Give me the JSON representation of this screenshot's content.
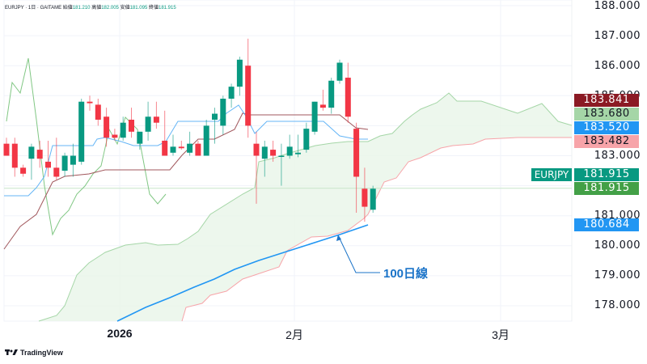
{
  "legend": {
    "symbol": "EURJPY · 1日 · GAITAME",
    "open_label": "始値",
    "open": "181.210",
    "high_label": "高値",
    "high": "182.005",
    "low_label": "安値",
    "low": "181.095",
    "close_label": "終値",
    "close": "181.915"
  },
  "axis": {
    "price_labels": [
      "188.000",
      "187.000",
      "186.000",
      "185.000",
      "183.000",
      "181.000",
      "180.000",
      "179.000",
      "178.000"
    ],
    "time_labels": [
      "2026",
      "2月",
      "3月"
    ]
  },
  "tags": {
    "t1": {
      "value": "183.841",
      "bg": "#8b1a24",
      "fg": "#ffffff"
    },
    "t2": {
      "value": "183.680",
      "bg": "#a5d6a7",
      "fg": "#131722"
    },
    "t3": {
      "value": "183.520",
      "bg": "#2196f3",
      "fg": "#ffffff"
    },
    "t4": {
      "value": "183.482",
      "bg": "#f7a4a9",
      "fg": "#131722"
    },
    "symbol": "EURJPY",
    "last": {
      "value": "181.915",
      "bg": "#089981",
      "fg": "#ffffff"
    },
    "close": {
      "value": "181.915",
      "bg": "#43a047",
      "fg": "#ffffff"
    },
    "ma100": {
      "value": "180.684",
      "bg": "#2196f3",
      "fg": "#ffffff"
    }
  },
  "annotation": {
    "text": "100日線"
  },
  "brand": {
    "name": "TradingView",
    "icon": "tradingview-logo-icon"
  },
  "colors": {
    "up": "#089981",
    "down": "#f23645",
    "tenkan": "#64b5f6",
    "kijun": "#a1575c",
    "chikou": "#81c784",
    "cloud": "#e8f5e9",
    "spanA": "#a5d6a7",
    "spanB": "#f7a4a9",
    "ma100": "#2196f3"
  },
  "chart_data": {
    "type": "candlestick",
    "title": "EURJPY · 1日 · GAITAME",
    "indicators": [
      "Ichimoku Cloud",
      "100-day SMA"
    ],
    "ylim": [
      177.2,
      188.0
    ],
    "y_ticks": [
      178,
      179,
      180,
      181,
      182,
      183,
      184,
      185,
      186,
      187,
      188
    ],
    "x_labels": [
      "2026",
      "2月",
      "3月"
    ],
    "candles": [
      {
        "o": 183.4,
        "h": 183.6,
        "l": 183.0,
        "c": 183.0
      },
      {
        "o": 183.4,
        "h": 183.6,
        "l": 182.3,
        "c": 182.6
      },
      {
        "o": 182.6,
        "h": 182.7,
        "l": 182.3,
        "c": 182.4
      },
      {
        "o": 182.9,
        "h": 183.4,
        "l": 182.2,
        "c": 183.3
      },
      {
        "o": 183.2,
        "h": 183.5,
        "l": 182.6,
        "c": 182.9
      },
      {
        "o": 182.8,
        "h": 183.5,
        "l": 182.3,
        "c": 182.6
      },
      {
        "o": 182.6,
        "h": 183.6,
        "l": 182.2,
        "c": 182.3
      },
      {
        "o": 182.5,
        "h": 183.1,
        "l": 182.3,
        "c": 183.0
      },
      {
        "o": 182.7,
        "h": 183.4,
        "l": 182.3,
        "c": 183.0
      },
      {
        "o": 182.8,
        "h": 184.9,
        "l": 182.7,
        "c": 184.8
      },
      {
        "o": 184.8,
        "h": 185.0,
        "l": 184.5,
        "c": 184.75
      },
      {
        "o": 184.7,
        "h": 184.9,
        "l": 184.0,
        "c": 184.2
      },
      {
        "o": 184.3,
        "h": 184.6,
        "l": 183.3,
        "c": 183.6
      },
      {
        "o": 183.7,
        "h": 183.9,
        "l": 183.5,
        "c": 183.6
      },
      {
        "o": 183.6,
        "h": 184.3,
        "l": 183.5,
        "c": 184.1
      },
      {
        "o": 184.2,
        "h": 184.6,
        "l": 183.6,
        "c": 183.8
      },
      {
        "o": 183.4,
        "h": 183.8,
        "l": 183.2,
        "c": 183.8
      },
      {
        "o": 183.8,
        "h": 184.8,
        "l": 183.5,
        "c": 184.3
      },
      {
        "o": 184.3,
        "h": 184.8,
        "l": 183.9,
        "c": 184.1
      },
      {
        "o": 183.5,
        "h": 184.5,
        "l": 183.0,
        "c": 183.0
      },
      {
        "o": 183.1,
        "h": 183.7,
        "l": 183.0,
        "c": 183.3
      },
      {
        "o": 183.3,
        "h": 183.5,
        "l": 183.2,
        "c": 183.25
      },
      {
        "o": 183.1,
        "h": 183.8,
        "l": 183.0,
        "c": 183.4
      },
      {
        "o": 183.4,
        "h": 183.5,
        "l": 183.0,
        "c": 183.0
      },
      {
        "o": 183.0,
        "h": 184.2,
        "l": 183.0,
        "c": 184.0
      },
      {
        "o": 184.2,
        "h": 184.6,
        "l": 183.4,
        "c": 184.4
      },
      {
        "o": 184.0,
        "h": 185.0,
        "l": 183.7,
        "c": 184.9
      },
      {
        "o": 184.9,
        "h": 185.4,
        "l": 184.6,
        "c": 185.3
      },
      {
        "o": 185.3,
        "h": 186.3,
        "l": 185.0,
        "c": 186.2
      },
      {
        "o": 186.0,
        "h": 186.9,
        "l": 183.6,
        "c": 184.0
      },
      {
        "o": 183.4,
        "h": 183.8,
        "l": 181.4,
        "c": 183.0
      },
      {
        "o": 182.9,
        "h": 183.5,
        "l": 182.3,
        "c": 183.3
      },
      {
        "o": 183.2,
        "h": 183.5,
        "l": 182.8,
        "c": 183.0
      },
      {
        "o": 183.0,
        "h": 183.4,
        "l": 182.0,
        "c": 183.0
      },
      {
        "o": 183.0,
        "h": 183.7,
        "l": 182.9,
        "c": 183.3
      },
      {
        "o": 183.05,
        "h": 183.7,
        "l": 182.95,
        "c": 183.1
      },
      {
        "o": 183.2,
        "h": 184.1,
        "l": 183.1,
        "c": 183.9
      },
      {
        "o": 183.8,
        "h": 184.8,
        "l": 183.7,
        "c": 184.8
      },
      {
        "o": 184.7,
        "h": 185.2,
        "l": 184.5,
        "c": 184.6
      },
      {
        "o": 184.6,
        "h": 185.6,
        "l": 184.4,
        "c": 185.5
      },
      {
        "o": 185.5,
        "h": 186.2,
        "l": 185.4,
        "c": 186.1
      },
      {
        "o": 185.6,
        "h": 186.1,
        "l": 184.1,
        "c": 184.3
      },
      {
        "o": 183.9,
        "h": 184.1,
        "l": 181.1,
        "c": 182.3
      },
      {
        "o": 181.9,
        "h": 182.6,
        "l": 180.8,
        "c": 181.3
      },
      {
        "o": 181.2,
        "h": 182.0,
        "l": 181.1,
        "c": 181.9
      }
    ],
    "last_price": 181.915,
    "ma100_last": 180.684,
    "tenkan_last": 183.52,
    "kijun_last": 183.841,
    "span_a_last": 183.68,
    "span_b_last": 183.482
  }
}
